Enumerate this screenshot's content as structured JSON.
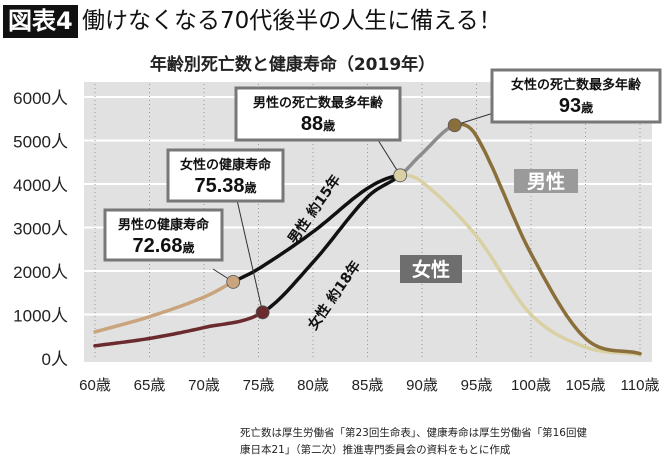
{
  "header": {
    "badge": "図表4",
    "title": "働けなくなる70代後半の人生に備える！"
  },
  "chart_data": {
    "type": "line",
    "title": "年齢別死亡数と健康寿命（2019年）",
    "xlim": [
      60,
      110
    ],
    "ylim": [
      0,
      6000
    ],
    "x_ticks": [
      "60歳",
      "65歳",
      "70歳",
      "75歳",
      "80歳",
      "85歳",
      "90歳",
      "95歳",
      "100歳",
      "105歳",
      "110歳"
    ],
    "y_ticks": [
      "0人",
      "1000人",
      "2000人",
      "3000人",
      "4000人",
      "5000人",
      "6000人"
    ],
    "grid": true,
    "series": [
      {
        "name": "男性",
        "label_color": "#9a9a9a",
        "points": [
          [
            60,
            600
          ],
          [
            65,
            950
          ],
          [
            70,
            1400
          ],
          [
            72.68,
            1750
          ],
          [
            75,
            2050
          ],
          [
            80,
            2900
          ],
          [
            85,
            3900
          ],
          [
            88,
            4200
          ],
          [
            90,
            4050
          ],
          [
            95,
            2800
          ],
          [
            100,
            1000
          ],
          [
            105,
            250
          ],
          [
            110,
            80
          ]
        ],
        "segments": [
          {
            "to": 72.68,
            "color": "#c9a47c"
          },
          {
            "to": 88,
            "color": "#111111"
          },
          {
            "to": 110,
            "color": "#d9d0a4"
          }
        ]
      },
      {
        "name": "女性",
        "label_color": "#6e6e6e",
        "points": [
          [
            60,
            280
          ],
          [
            65,
            450
          ],
          [
            70,
            700
          ],
          [
            75.38,
            1050
          ],
          [
            80,
            2200
          ],
          [
            85,
            3700
          ],
          [
            88,
            4200
          ],
          [
            90,
            4700
          ],
          [
            93,
            5350
          ],
          [
            95,
            5100
          ],
          [
            100,
            2400
          ],
          [
            105,
            450
          ],
          [
            110,
            100
          ]
        ],
        "segments": [
          {
            "to": 75.38,
            "color": "#6b2a2e"
          },
          {
            "to": 88,
            "color": "#111111"
          },
          {
            "to": 93,
            "color": "#8c8c8c"
          },
          {
            "to": 110,
            "color": "#8a6f3a"
          }
        ]
      }
    ],
    "markers": [
      {
        "x": 72.68,
        "y": 1750,
        "color": "#c9a47c",
        "line1": "男性の健康寿命",
        "line2": "72.68",
        "unit": "歳"
      },
      {
        "x": 75.38,
        "y": 1050,
        "color": "#6b2a2e",
        "line1": "女性の健康寿命",
        "line2": "75.38",
        "unit": "歳"
      },
      {
        "x": 88,
        "y": 4200,
        "color": "#d9d0a4",
        "line1": "男性の死亡数最多年齢",
        "line2": "88",
        "unit": "歳"
      },
      {
        "x": 93,
        "y": 5350,
        "color": "#8a6f3a",
        "line1": "女性の死亡数最多年齢",
        "line2": "93",
        "unit": "歳"
      }
    ],
    "annotations": [
      "男性 約15年",
      "女性 約18年"
    ]
  },
  "footnote": [
    "死亡数は厚生労働省「第23回生命表」、健康寿命は厚生労働省「第16回健",
    "康日本21」（第二次）推進専門委員会の資料をもとに作成"
  ]
}
